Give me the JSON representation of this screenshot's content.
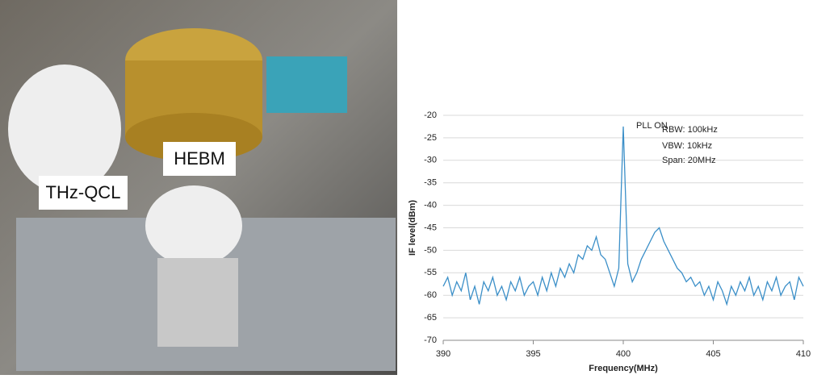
{
  "photo": {
    "labels": [
      "THz-QCL",
      "HEBM"
    ]
  },
  "chart_data": {
    "type": "line",
    "annotations": [
      "PLL ON",
      "RBW: 100kHz",
      "VBW: 10kHz",
      "Span: 20MHz"
    ],
    "x_label": "Frequency(MHz)",
    "y_label": "IF level(dBm)",
    "color": "#3b8fc8",
    "grid": true,
    "xlim": [
      390,
      410
    ],
    "xticks": [
      390,
      395,
      400,
      405,
      410
    ],
    "ylim": [
      -70,
      -20
    ],
    "yticks": [
      -70,
      -65,
      -60,
      -55,
      -50,
      -45,
      -40,
      -35,
      -30,
      -25,
      -20
    ],
    "x": [
      390,
      390.25,
      390.5,
      390.75,
      391,
      391.25,
      391.5,
      391.75,
      392,
      392.25,
      392.5,
      392.75,
      393,
      393.25,
      393.5,
      393.75,
      394,
      394.25,
      394.5,
      394.75,
      395,
      395.25,
      395.5,
      395.75,
      396,
      396.25,
      396.5,
      396.75,
      397,
      397.25,
      397.5,
      397.75,
      398,
      398.25,
      398.5,
      398.75,
      399,
      399.25,
      399.5,
      399.75,
      400,
      400.25,
      400.5,
      400.75,
      401,
      401.25,
      401.5,
      401.75,
      402,
      402.25,
      402.5,
      402.75,
      403,
      403.25,
      403.5,
      403.75,
      404,
      404.25,
      404.5,
      404.75,
      405,
      405.25,
      405.5,
      405.75,
      406,
      406.25,
      406.5,
      406.75,
      407,
      407.25,
      407.5,
      407.75,
      408,
      408.25,
      408.5,
      408.75,
      409,
      409.25,
      409.5,
      409.75,
      410
    ],
    "values": [
      -58,
      -56,
      -60,
      -57,
      -59,
      -55,
      -61,
      -58,
      -62,
      -57,
      -59,
      -56,
      -60,
      -58,
      -61,
      -57,
      -59,
      -56,
      -60,
      -58,
      -57,
      -60,
      -56,
      -59,
      -55,
      -58,
      -54,
      -56,
      -53,
      -55,
      -51,
      -52,
      -49,
      -50,
      -47,
      -51,
      -52,
      -55,
      -58,
      -54,
      -22.5,
      -53,
      -57,
      -55,
      -52,
      -50,
      -48,
      -46,
      -45,
      -48,
      -50,
      -52,
      -54,
      -55,
      -57,
      -56,
      -58,
      -57,
      -60,
      -58,
      -61,
      -57,
      -59,
      -62,
      -58,
      -60,
      -57,
      -59,
      -56,
      -60,
      -58,
      -61,
      -57,
      -59,
      -56,
      -60,
      -58,
      -57,
      -61,
      -56,
      -58
    ]
  }
}
